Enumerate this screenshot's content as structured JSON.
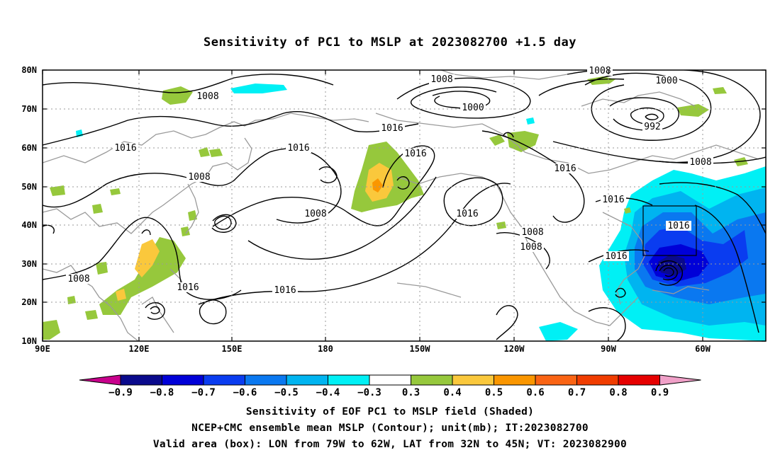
{
  "title": "Sensitivity of PC1 to MSLP at 2023082700 +1.5 day",
  "map": {
    "lon_ticks": [
      "90E",
      "120E",
      "150E",
      "180",
      "150W",
      "120W",
      "90W",
      "60W"
    ],
    "lat_ticks": [
      "80N",
      "70N",
      "60N",
      "50N",
      "40N",
      "30N",
      "20N",
      "10N"
    ],
    "grid": "dotted",
    "valid_box": {
      "lon_from": "79W",
      "lon_to": "62W",
      "lat_from": "32N",
      "lat_to": "45N"
    },
    "contour_labels": [
      "1008",
      "1008",
      "1000",
      "1000",
      "992",
      "1016",
      "1016",
      "1016",
      "1008",
      "1016",
      "1016",
      "1008",
      "1016",
      "1016",
      "1016",
      "1016",
      "1008",
      "1008",
      "1016",
      "1008",
      "1016",
      "1008",
      "1008"
    ]
  },
  "colorbar": {
    "labels": [
      "-0.9",
      "-0.8",
      "-0.7",
      "-0.6",
      "-0.5",
      "-0.4",
      "-0.3",
      "0.3",
      "0.4",
      "0.5",
      "0.6",
      "0.7",
      "0.8",
      "0.9"
    ],
    "colors": [
      "#0a0a8c",
      "#0000d8",
      "#0a3cf0",
      "#0a78f0",
      "#00b4f0",
      "#00f0f5",
      "#ffffff",
      "#96c83c",
      "#fac83c",
      "#fa9600",
      "#fa6414",
      "#f03c00",
      "#e60000"
    ],
    "low_end_color": "#c8008c",
    "high_end_color": "#f0a0c8"
  },
  "captions": {
    "line1": "Sensitivity of EOF PC1 to MSLP field (Shaded)",
    "line2": "NCEP+CMC ensemble mean MSLP (Contour); unit(mb); IT:2023082700",
    "line3": "Valid area (box): LON from 79W to 62W, LAT from 32N to 45N; VT: 2023082900"
  }
}
